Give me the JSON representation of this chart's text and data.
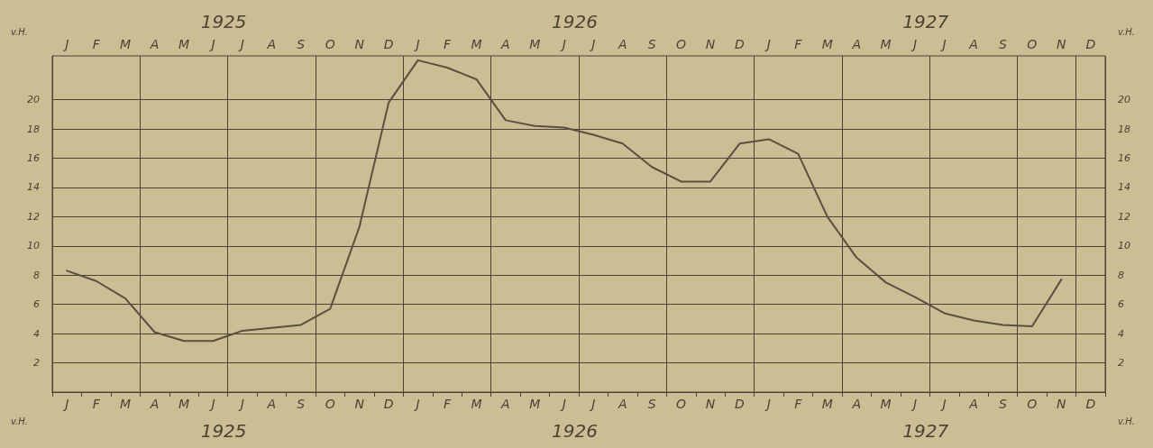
{
  "chart_data": {
    "type": "line",
    "ylabel": "v.H.",
    "y2label": "v.H.",
    "categories": [
      "J",
      "F",
      "M",
      "A",
      "M",
      "J",
      "J",
      "A",
      "S",
      "O",
      "N",
      "D",
      "J",
      "F",
      "M",
      "A",
      "M",
      "J",
      "J",
      "A",
      "S",
      "O",
      "N",
      "D",
      "J",
      "F",
      "M",
      "A",
      "M",
      "J",
      "J",
      "A",
      "S",
      "O",
      "N",
      "D"
    ],
    "series": [
      {
        "color": "#5a5040",
        "values": [
          8.3,
          7.6,
          6.4,
          4.1,
          3.5,
          3.5,
          4.2,
          4.4,
          4.6,
          5.7,
          11.3,
          19.8,
          22.7,
          22.2,
          21.4,
          18.6,
          18.2,
          18.1,
          17.6,
          17.0,
          15.4,
          14.4,
          14.4,
          17.0,
          17.3,
          16.3,
          12.0,
          9.2,
          7.5,
          6.5,
          5.4,
          4.9,
          4.6,
          4.5,
          7.7,
          null
        ]
      }
    ],
    "annotations": [
      "1925",
      "1926",
      "1927"
    ],
    "ylim": [
      0,
      23
    ],
    "yticks": [
      2,
      4,
      6,
      8,
      10,
      12,
      14,
      16,
      18,
      20
    ],
    "y2lim": [
      0,
      23
    ],
    "y2ticks": [
      2,
      4,
      6,
      8,
      10,
      12,
      14,
      16,
      18,
      20
    ],
    "grid": true,
    "marker": "none",
    "line_style": "solid"
  }
}
